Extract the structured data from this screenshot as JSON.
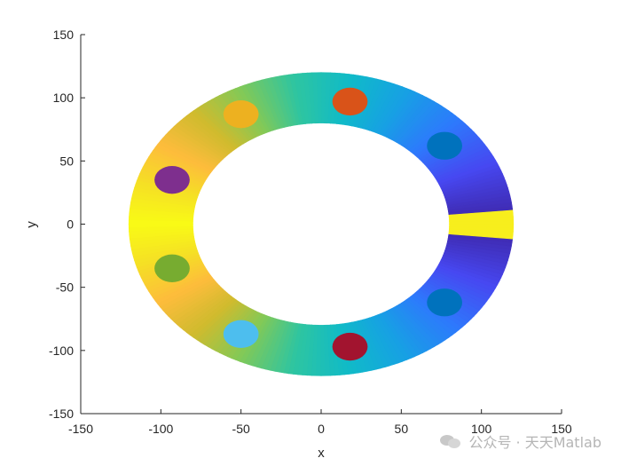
{
  "chart_data": {
    "type": "scatter",
    "title": "",
    "xlabel": "x",
    "ylabel": "y",
    "xlim": [
      -150,
      150
    ],
    "ylim": [
      -150,
      150
    ],
    "xticks": [
      -150,
      -100,
      -50,
      0,
      50,
      100,
      150
    ],
    "yticks": [
      -150,
      -100,
      -50,
      0,
      50,
      100,
      150
    ],
    "xtick_labels": [
      "-150",
      "-100",
      "-50",
      "0",
      "50",
      "100",
      "150"
    ],
    "ytick_labels": [
      "-150",
      "-100",
      "-50",
      "0",
      "50",
      "100",
      "150"
    ],
    "grid": false,
    "ring": {
      "center": [
        0,
        0
      ],
      "outer_radii": [
        120,
        120
      ],
      "inner_radii": [
        80,
        80
      ],
      "colormap": "parula",
      "colormap_colors": [
        "#3e26a8",
        "#4748f1",
        "#2d7afc",
        "#17a0e4",
        "#10bac8",
        "#2ec5a1",
        "#82c957",
        "#cfbb2e",
        "#fdbc3c",
        "#f5e025",
        "#f9fb15"
      ]
    },
    "series": [
      {
        "x": 18,
        "y": 97,
        "radius": 11,
        "color": "#D95319"
      },
      {
        "x": -50,
        "y": 87,
        "radius": 11,
        "color": "#EDB120"
      },
      {
        "x": -93,
        "y": 35,
        "radius": 11,
        "color": "#7E2F8E"
      },
      {
        "x": -93,
        "y": -35,
        "radius": 11,
        "color": "#77AC30"
      },
      {
        "x": -50,
        "y": -87,
        "radius": 11,
        "color": "#4DBEEE"
      },
      {
        "x": 18,
        "y": -97,
        "radius": 11,
        "color": "#A2142F"
      },
      {
        "x": 77,
        "y": -62,
        "radius": 11,
        "color": "#0072BD"
      },
      {
        "x": 77,
        "y": 62,
        "radius": 11,
        "color": "#0072BD"
      }
    ]
  },
  "watermark": {
    "text": "公众号 · 天天Matlab",
    "icon": "wechat-icon"
  }
}
